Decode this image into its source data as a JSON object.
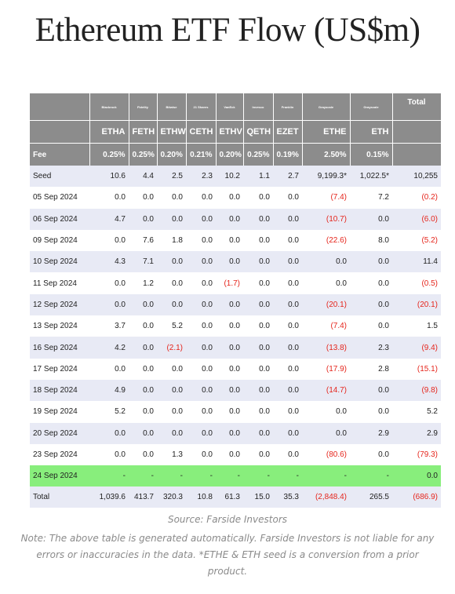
{
  "title": "Ethereum ETF Flow (US$m)",
  "issuers": [
    "",
    "Blackrock",
    "Fidelity",
    "Bitwise",
    "21 Shares",
    "VanEck",
    "Invesco",
    "Franklin",
    "Grayscale",
    "Grayscale",
    "Total"
  ],
  "tickers": [
    "",
    "ETHA",
    "FETH",
    "ETHW",
    "CETH",
    "ETHV",
    "QETH",
    "EZET",
    "ETHE",
    "ETH",
    ""
  ],
  "fee": [
    "Fee",
    "0.25%",
    "0.25%",
    "0.20%",
    "0.21%",
    "0.20%",
    "0.25%",
    "0.19%",
    "2.50%",
    "0.15%",
    ""
  ],
  "rows": [
    {
      "cells": [
        "Seed",
        "10.6",
        "4.4",
        "2.5",
        "2.3",
        "10.2",
        "1.1",
        "2.7",
        "9,199.3*",
        "1,022.5*",
        "10,255"
      ],
      "style": "alt"
    },
    {
      "cells": [
        "05 Sep 2024",
        "0.0",
        "0.0",
        "0.0",
        "0.0",
        "0.0",
        "0.0",
        "0.0",
        "(7.4)",
        "7.2",
        "(0.2)"
      ],
      "style": "plain"
    },
    {
      "cells": [
        "06 Sep 2024",
        "4.7",
        "0.0",
        "0.0",
        "0.0",
        "0.0",
        "0.0",
        "0.0",
        "(10.7)",
        "0.0",
        "(6.0)"
      ],
      "style": "alt"
    },
    {
      "cells": [
        "09 Sep 2024",
        "0.0",
        "7.6",
        "1.8",
        "0.0",
        "0.0",
        "0.0",
        "0.0",
        "(22.6)",
        "8.0",
        "(5.2)"
      ],
      "style": "plain"
    },
    {
      "cells": [
        "10 Sep 2024",
        "4.3",
        "7.1",
        "0.0",
        "0.0",
        "0.0",
        "0.0",
        "0.0",
        "0.0",
        "0.0",
        "11.4"
      ],
      "style": "alt"
    },
    {
      "cells": [
        "11 Sep 2024",
        "0.0",
        "1.2",
        "0.0",
        "0.0",
        "(1.7)",
        "0.0",
        "0.0",
        "0.0",
        "0.0",
        "(0.5)"
      ],
      "style": "plain"
    },
    {
      "cells": [
        "12 Sep 2024",
        "0.0",
        "0.0",
        "0.0",
        "0.0",
        "0.0",
        "0.0",
        "0.0",
        "(20.1)",
        "0.0",
        "(20.1)"
      ],
      "style": "alt"
    },
    {
      "cells": [
        "13 Sep 2024",
        "3.7",
        "0.0",
        "5.2",
        "0.0",
        "0.0",
        "0.0",
        "0.0",
        "(7.4)",
        "0.0",
        "1.5"
      ],
      "style": "plain"
    },
    {
      "cells": [
        "16 Sep 2024",
        "4.2",
        "0.0",
        "(2.1)",
        "0.0",
        "0.0",
        "0.0",
        "0.0",
        "(13.8)",
        "2.3",
        "(9.4)"
      ],
      "style": "alt"
    },
    {
      "cells": [
        "17 Sep 2024",
        "0.0",
        "0.0",
        "0.0",
        "0.0",
        "0.0",
        "0.0",
        "0.0",
        "(17.9)",
        "2.8",
        "(15.1)"
      ],
      "style": "plain"
    },
    {
      "cells": [
        "18 Sep 2024",
        "4.9",
        "0.0",
        "0.0",
        "0.0",
        "0.0",
        "0.0",
        "0.0",
        "(14.7)",
        "0.0",
        "(9.8)"
      ],
      "style": "alt"
    },
    {
      "cells": [
        "19 Sep 2024",
        "5.2",
        "0.0",
        "0.0",
        "0.0",
        "0.0",
        "0.0",
        "0.0",
        "0.0",
        "0.0",
        "5.2"
      ],
      "style": "plain"
    },
    {
      "cells": [
        "20 Sep 2024",
        "0.0",
        "0.0",
        "0.0",
        "0.0",
        "0.0",
        "0.0",
        "0.0",
        "0.0",
        "2.9",
        "2.9"
      ],
      "style": "alt"
    },
    {
      "cells": [
        "23 Sep 2024",
        "0.0",
        "0.0",
        "1.3",
        "0.0",
        "0.0",
        "0.0",
        "0.0",
        "(80.6)",
        "0.0",
        "(79.3)"
      ],
      "style": "plain"
    },
    {
      "cells": [
        "24 Sep 2024",
        "-",
        "-",
        "-",
        "-",
        "-",
        "-",
        "-",
        "-",
        "-",
        "0.0"
      ],
      "style": "green"
    },
    {
      "cells": [
        "Total",
        "1,039.6",
        "413.7",
        "320.3",
        "10.8",
        "61.3",
        "15.0",
        "35.3",
        "(2,848.4)",
        "265.5",
        "(686.9)"
      ],
      "style": "total"
    }
  ],
  "colors": {
    "header_bg": "#8c8c8c",
    "row_alt": "#e8eaf5",
    "highlight_row": "#88ee7c",
    "negative": "#e5251c"
  },
  "source": "Source: Farside Investors",
  "note": "Note: The above table is generated automatically. Farside Investors is not liable for any errors or inaccuracies in the data. *ETHE & ETH seed is a conversion from a prior product."
}
